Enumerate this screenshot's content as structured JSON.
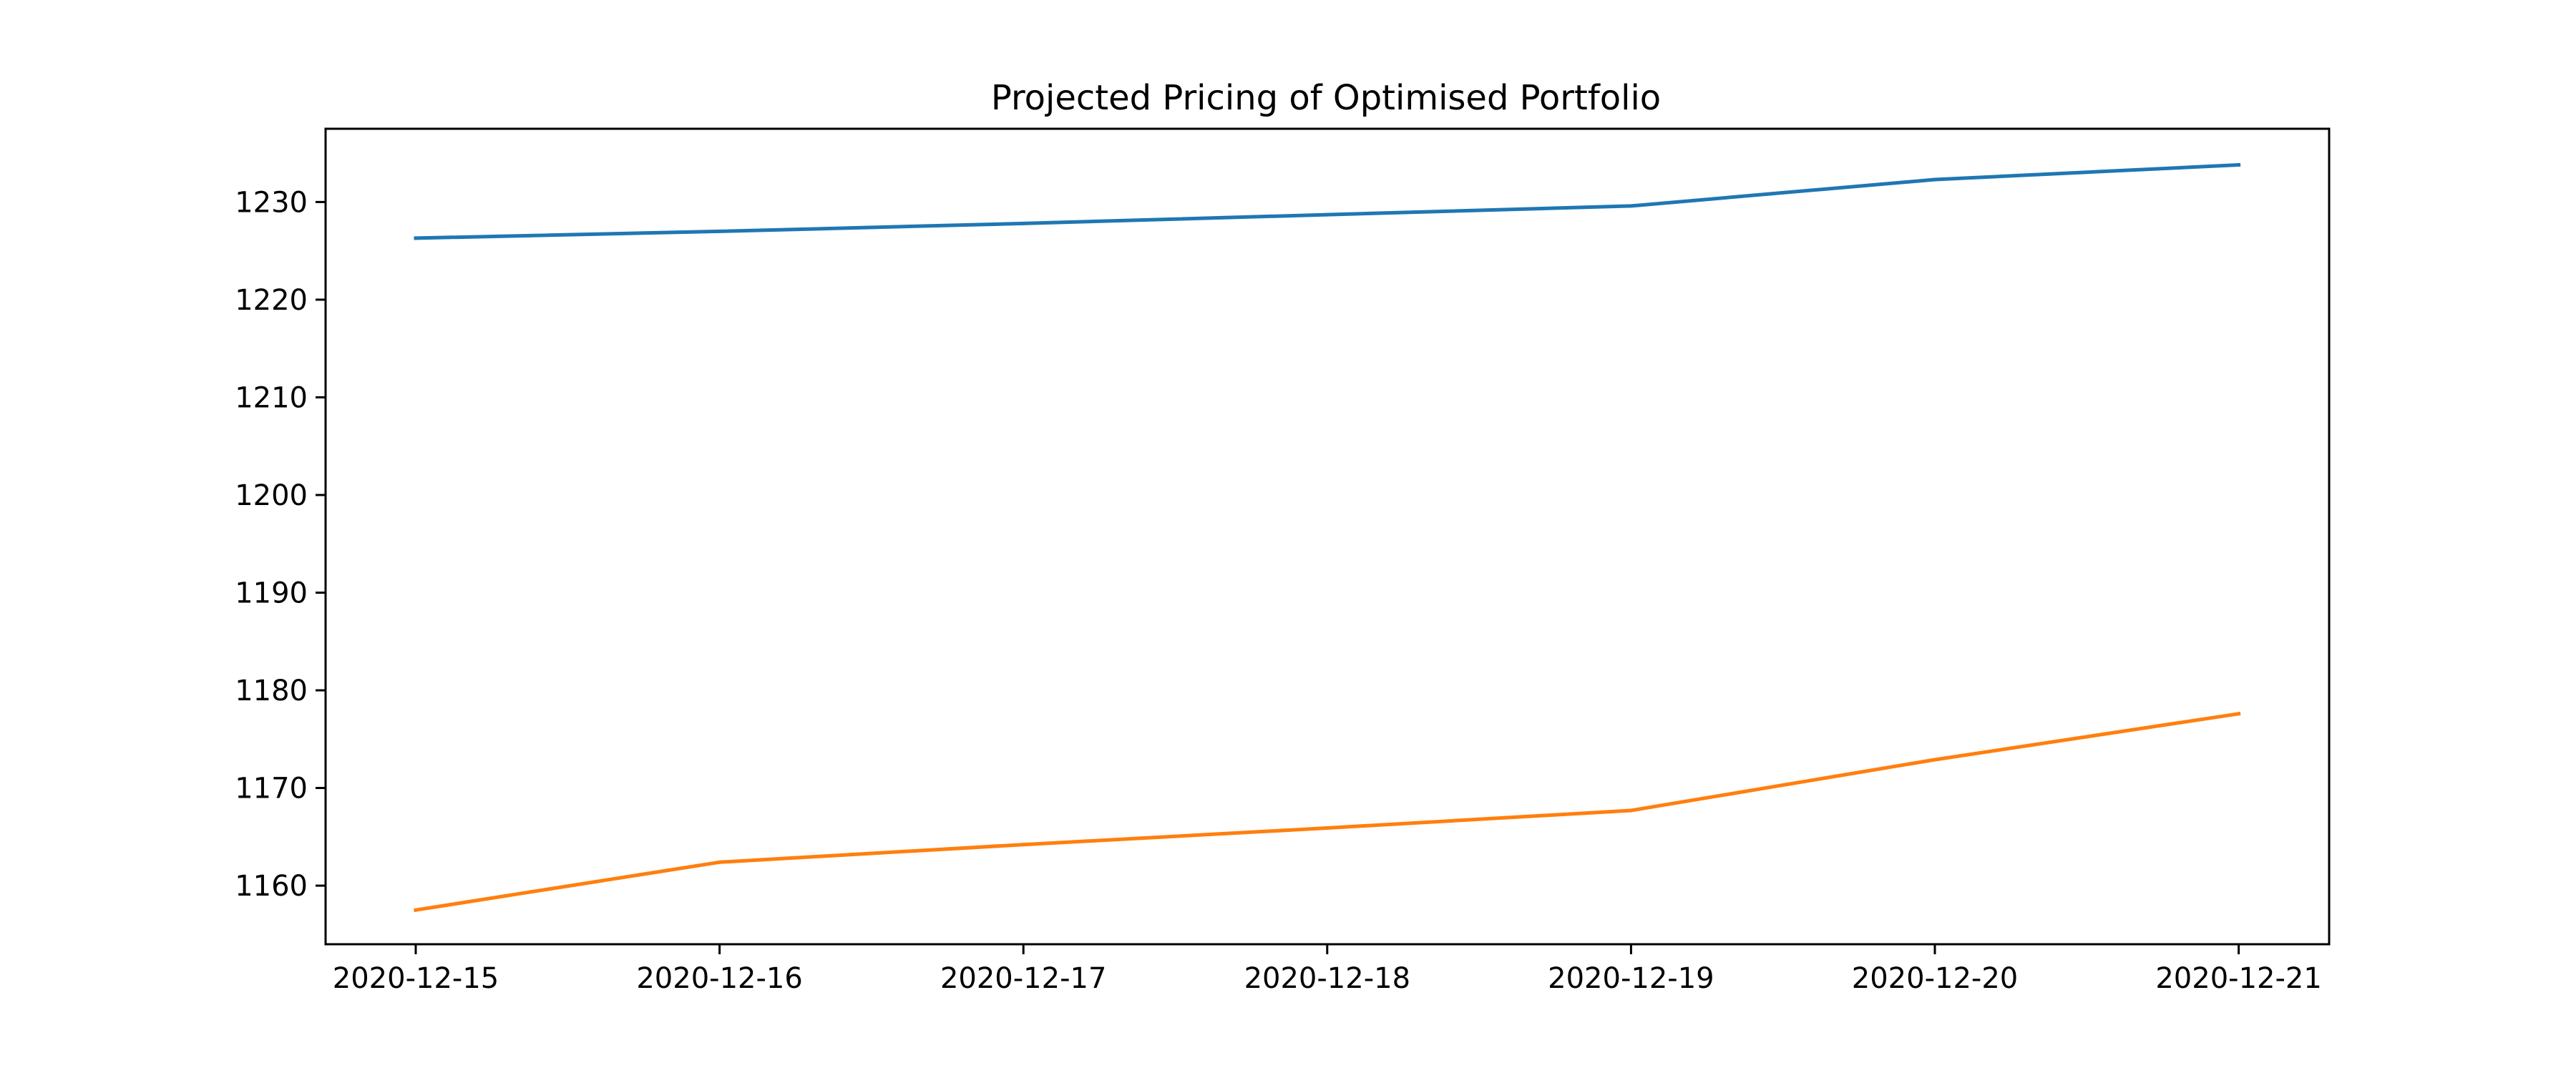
{
  "chart_data": {
    "type": "line",
    "title": "Projected Pricing of Optimised Portfolio",
    "xlabel": "",
    "ylabel": "",
    "x": [
      "2020-12-15",
      "2020-12-16",
      "2020-12-17",
      "2020-12-18",
      "2020-12-19",
      "2020-12-20",
      "2020-12-21"
    ],
    "series": [
      {
        "color": "#1f77b4",
        "values": [
          1226.3,
          1227.0,
          1227.8,
          1228.7,
          1229.6,
          1232.3,
          1233.8
        ]
      },
      {
        "color": "#ff7f0e",
        "values": [
          1157.5,
          1162.4,
          1164.2,
          1165.9,
          1167.7,
          1172.9,
          1177.6
        ]
      }
    ],
    "ylim": [
      1154.0,
      1237.5
    ],
    "yticks": [
      1160,
      1170,
      1180,
      1190,
      1200,
      1210,
      1220,
      1230
    ],
    "ytick_labels": [
      "1160",
      "1170",
      "1180",
      "1190",
      "1200",
      "1210",
      "1220",
      "1230"
    ],
    "xticks": [
      "2020-12-15",
      "2020-12-16",
      "2020-12-17",
      "2020-12-18",
      "2020-12-19",
      "2020-12-20",
      "2020-12-21"
    ],
    "grid": false,
    "legend": "none"
  }
}
